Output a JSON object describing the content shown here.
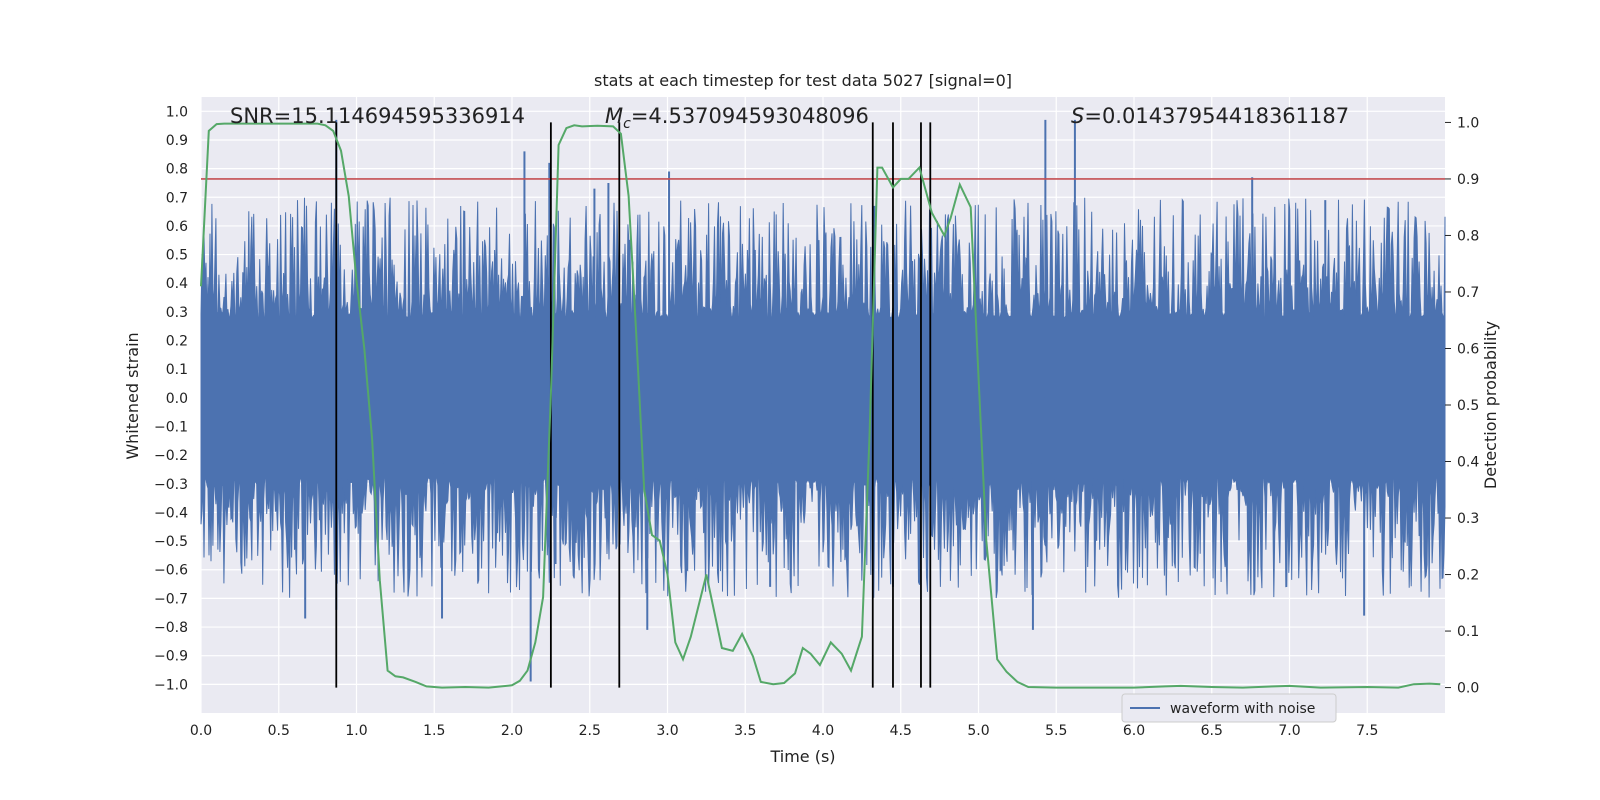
{
  "chart_data": {
    "type": "line",
    "title": "stats at each timestep for test data 5027 [signal=0]",
    "xlabel": "Time (s)",
    "ylabel": "Whitened strain",
    "y2label": "Detection probability",
    "xlim": [
      0.0,
      8.0
    ],
    "ylim": [
      -1.1,
      1.05
    ],
    "y2lim": [
      -0.045,
      1.045
    ],
    "x_ticks": [
      "0.0",
      "0.5",
      "1.0",
      "1.5",
      "2.0",
      "2.5",
      "3.0",
      "3.5",
      "4.0",
      "4.5",
      "5.0",
      "5.5",
      "6.0",
      "6.5",
      "7.0",
      "7.5"
    ],
    "y_ticks": [
      "1.0",
      "0.9",
      "0.8",
      "0.7",
      "0.6",
      "0.5",
      "0.4",
      "0.3",
      "0.2",
      "0.1",
      "0.0",
      "-0.1",
      "-0.2",
      "-0.3",
      "-0.4",
      "-0.5",
      "-0.6",
      "-0.7",
      "-0.8",
      "-0.9",
      "-1.0"
    ],
    "y2_ticks": [
      "1.0",
      "0.9",
      "0.8",
      "0.7",
      "0.6",
      "0.5",
      "0.4",
      "0.3",
      "0.2",
      "0.1",
      "0.0"
    ],
    "grid": true,
    "legend_position": "lower-right",
    "annotations": {
      "snr": "SNR=15.114694595336914",
      "mc_symbol": "M",
      "mc_sub": "c",
      "mc_value": "=4.537094593048096",
      "s_symbol": "S",
      "s_value": "=0.01437954418361187"
    },
    "threshold_line": {
      "y2": 0.9,
      "color": "#c44e52"
    },
    "vertical_lines": [
      0.87,
      2.25,
      2.69,
      4.32,
      4.45,
      4.63,
      4.69
    ],
    "waveform": {
      "name": "waveform with noise",
      "color": "#4c72b0",
      "core_amplitude": 0.23,
      "peaks_up": [
        [
          0.87,
          0.97
        ],
        [
          2.08,
          0.86
        ],
        [
          2.24,
          0.82
        ],
        [
          2.53,
          0.73
        ],
        [
          2.62,
          0.75
        ],
        [
          3.01,
          0.79
        ],
        [
          5.43,
          0.97
        ],
        [
          5.62,
          0.97
        ],
        [
          4.33,
          0.67
        ],
        [
          7.23,
          0.69
        ],
        [
          6.76,
          0.77
        ]
      ],
      "peaks_down": [
        [
          0.87,
          -0.74
        ],
        [
          2.12,
          -0.99
        ],
        [
          2.28,
          -0.58
        ],
        [
          2.87,
          -0.81
        ],
        [
          3.66,
          -0.66
        ],
        [
          4.45,
          -0.66
        ],
        [
          5.35,
          -0.81
        ],
        [
          7.48,
          -0.76
        ],
        [
          0.67,
          -0.77
        ],
        [
          1.55,
          -0.77
        ]
      ]
    },
    "probability": {
      "color": "#55a868",
      "x": [
        0.0,
        0.05,
        0.1,
        0.15,
        0.3,
        0.45,
        0.6,
        0.75,
        0.8,
        0.85,
        0.9,
        0.95,
        1.0,
        1.05,
        1.1,
        1.15,
        1.2,
        1.25,
        1.3,
        1.38,
        1.45,
        1.55,
        1.7,
        1.85,
        2.0,
        2.05,
        2.1,
        2.15,
        2.2,
        2.25,
        2.3,
        2.35,
        2.4,
        2.45,
        2.55,
        2.65,
        2.7,
        2.75,
        2.8,
        2.85,
        2.9,
        2.95,
        3.0,
        3.05,
        3.1,
        3.15,
        3.25,
        3.35,
        3.42,
        3.48,
        3.55,
        3.6,
        3.68,
        3.75,
        3.82,
        3.87,
        3.92,
        3.98,
        4.05,
        4.12,
        4.18,
        4.25,
        4.3,
        4.35,
        4.38,
        4.45,
        4.5,
        4.55,
        4.62,
        4.7,
        4.78,
        4.82,
        4.88,
        4.95,
        5.0,
        5.05,
        5.12,
        5.18,
        5.25,
        5.32,
        5.5,
        5.7,
        6.0,
        6.2,
        6.3,
        6.5,
        6.7,
        6.9,
        7.0,
        7.2,
        7.5,
        7.7,
        7.8,
        7.9,
        7.97
      ],
      "y": [
        0.71,
        0.985,
        0.997,
        0.998,
        0.998,
        0.998,
        0.998,
        0.998,
        0.995,
        0.985,
        0.95,
        0.87,
        0.72,
        0.6,
        0.44,
        0.19,
        0.03,
        0.02,
        0.018,
        0.01,
        0.002,
        0.0,
        0.001,
        0.0,
        0.004,
        0.012,
        0.03,
        0.08,
        0.16,
        0.52,
        0.96,
        0.99,
        0.995,
        0.993,
        0.994,
        0.993,
        0.98,
        0.87,
        0.62,
        0.35,
        0.27,
        0.26,
        0.2,
        0.08,
        0.05,
        0.09,
        0.2,
        0.07,
        0.065,
        0.095,
        0.055,
        0.01,
        0.006,
        0.008,
        0.025,
        0.07,
        0.06,
        0.04,
        0.08,
        0.06,
        0.03,
        0.09,
        0.45,
        0.92,
        0.92,
        0.885,
        0.9,
        0.9,
        0.92,
        0.84,
        0.8,
        0.83,
        0.89,
        0.85,
        0.55,
        0.26,
        0.05,
        0.028,
        0.01,
        0.001,
        0.0,
        0.0,
        0.0,
        0.002,
        0.003,
        0.001,
        0.0,
        0.002,
        0.003,
        0.0,
        0.001,
        0.0,
        0.006,
        0.007,
        0.006
      ]
    }
  }
}
